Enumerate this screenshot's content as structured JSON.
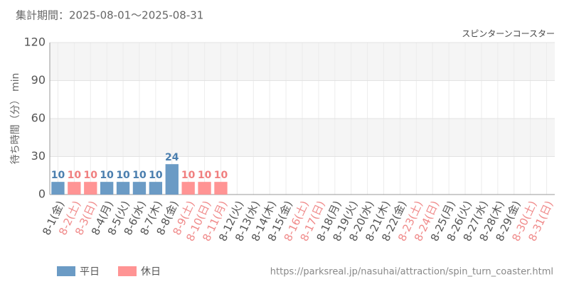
{
  "chart_data": {
    "type": "bar",
    "title": "集計期間：2025-08-01～2025-08-31",
    "subtitle": "スピンターンコースター",
    "y_label": "待ち時間（分） min",
    "source": "https://parksreal.jp/nasuhai/attraction/spin_turn_coaster.html",
    "categories": [
      "8-1(金)",
      "8-2(土)",
      "8-3(日)",
      "8-4(月)",
      "8-5(火)",
      "8-6(水)",
      "8-7(木)",
      "8-8(金)",
      "8-9(土)",
      "8-10(日)",
      "8-11(月)",
      "8-12(火)",
      "8-13(水)",
      "8-14(木)",
      "8-15(金)",
      "8-16(土)",
      "8-17(日)",
      "8-18(月)",
      "8-19(火)",
      "8-20(水)",
      "8-21(木)",
      "8-22(金)",
      "8-23(土)",
      "8-24(日)",
      "8-25(月)",
      "8-26(火)",
      "8-27(水)",
      "8-28(木)",
      "8-29(金)",
      "8-30(土)",
      "8-31(日)"
    ],
    "category_colors": [
      "#555555",
      "#f08a8a",
      "#f08a8a",
      "#555555",
      "#555555",
      "#555555",
      "#555555",
      "#555555",
      "#f08a8a",
      "#f08a8a",
      "#f08a8a",
      "#555555",
      "#555555",
      "#555555",
      "#555555",
      "#f08a8a",
      "#f08a8a",
      "#555555",
      "#555555",
      "#555555",
      "#555555",
      "#555555",
      "#f08a8a",
      "#f08a8a",
      "#555555",
      "#555555",
      "#555555",
      "#555555",
      "#555555",
      "#f08a8a",
      "#f08a8a"
    ],
    "series": [
      {
        "name": "平日",
        "color": "#6b9bc5",
        "label_color": "#4a7eae",
        "values": [
          10,
          null,
          null,
          10,
          10,
          10,
          10,
          24,
          null,
          null,
          null,
          null,
          null,
          null,
          null,
          null,
          null,
          null,
          null,
          null,
          null,
          null,
          null,
          null,
          null,
          null,
          null,
          null,
          null,
          null,
          null
        ]
      },
      {
        "name": "休日",
        "color": "#ff9494",
        "label_color": "#f07f7f",
        "values": [
          null,
          10,
          10,
          null,
          null,
          null,
          null,
          null,
          10,
          10,
          10,
          null,
          null,
          null,
          null,
          null,
          null,
          null,
          null,
          null,
          null,
          null,
          null,
          null,
          null,
          null,
          null,
          null,
          null,
          null,
          null
        ]
      }
    ],
    "ylim": [
      0,
      120
    ],
    "yticks": [
      0,
      30,
      60,
      90,
      120
    ],
    "grid": true
  }
}
